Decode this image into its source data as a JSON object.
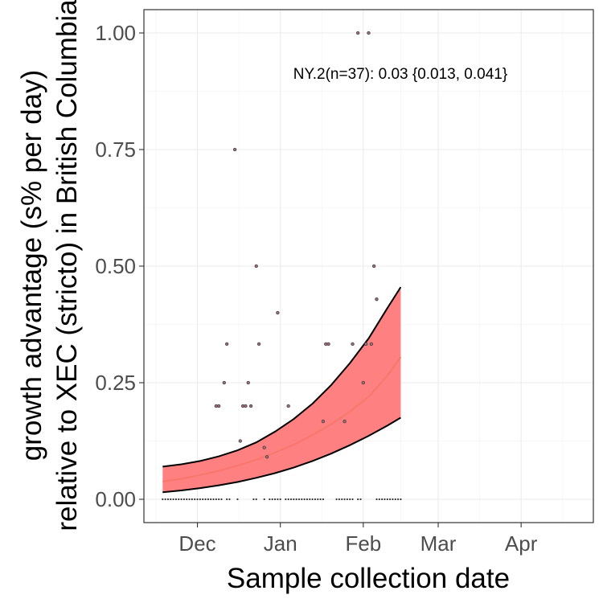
{
  "chart_data": {
    "type": "scatter",
    "title": "",
    "xlabel": "Sample collection date",
    "ylabel_line1": "growth advantage (s% per day)",
    "ylabel_line2": "relative to XEC (stricto) in British Columbia",
    "xlim": [
      "2024-11-11",
      "2025-04-28"
    ],
    "ylim": [
      -0.05,
      1.05
    ],
    "grid": true,
    "x_ticks": [
      {
        "date": "2024-12-01",
        "label": "Dec"
      },
      {
        "date": "2025-01-01",
        "label": "Jan"
      },
      {
        "date": "2025-02-01",
        "label": "Feb"
      },
      {
        "date": "2025-03-01",
        "label": "Mar"
      },
      {
        "date": "2025-04-01",
        "label": "Apr"
      }
    ],
    "y_ticks": [
      {
        "value": 0.0,
        "label": "0.00"
      },
      {
        "value": 0.25,
        "label": "0.25"
      },
      {
        "value": 0.5,
        "label": "0.50"
      },
      {
        "value": 0.75,
        "label": "0.75"
      },
      {
        "value": 1.0,
        "label": "1.00"
      }
    ],
    "annotation": "NY.2(n=37): 0.03 {0.013, 0.041}",
    "colors": {
      "fit": "#f8766d",
      "ribbon": "#ff8080",
      "bound": "#000000",
      "points": "#4d4d4d"
    },
    "points": [
      {
        "x": "2024-12-08",
        "y": 0.2
      },
      {
        "x": "2024-12-09",
        "y": 0.2
      },
      {
        "x": "2024-12-11",
        "y": 0.25
      },
      {
        "x": "2024-12-12",
        "y": 0.333
      },
      {
        "x": "2024-12-15",
        "y": 0.75
      },
      {
        "x": "2024-12-17",
        "y": 0.125
      },
      {
        "x": "2024-12-18",
        "y": 0.2
      },
      {
        "x": "2024-12-19",
        "y": 0.2
      },
      {
        "x": "2024-12-20",
        "y": 0.25
      },
      {
        "x": "2024-12-21",
        "y": 0.2
      },
      {
        "x": "2024-12-23",
        "y": 0.5
      },
      {
        "x": "2024-12-24",
        "y": 0.333
      },
      {
        "x": "2024-12-26",
        "y": 0.111
      },
      {
        "x": "2024-12-27",
        "y": 0.091
      },
      {
        "x": "2024-12-31",
        "y": 0.4
      },
      {
        "x": "2025-01-04",
        "y": 0.2
      },
      {
        "x": "2025-01-17",
        "y": 0.167
      },
      {
        "x": "2025-01-18",
        "y": 0.333
      },
      {
        "x": "2025-01-19",
        "y": 0.333
      },
      {
        "x": "2025-01-25",
        "y": 0.167
      },
      {
        "x": "2025-01-28",
        "y": 0.333
      },
      {
        "x": "2025-01-30",
        "y": 1.0
      },
      {
        "x": "2025-02-01",
        "y": 0.25
      },
      {
        "x": "2025-02-02",
        "y": 0.333
      },
      {
        "x": "2025-02-03",
        "y": 1.0
      },
      {
        "x": "2025-02-04",
        "y": 0.333
      },
      {
        "x": "2025-02-05",
        "y": 0.5
      },
      {
        "x": "2025-02-06",
        "y": 0.429
      }
    ],
    "zero_points": [
      "2024-11-18",
      "2024-11-19",
      "2024-11-20",
      "2024-11-21",
      "2024-11-22",
      "2024-11-23",
      "2024-11-24",
      "2024-11-25",
      "2024-11-26",
      "2024-11-27",
      "2024-11-28",
      "2024-11-29",
      "2024-11-30",
      "2024-12-01",
      "2024-12-02",
      "2024-12-03",
      "2024-12-04",
      "2024-12-05",
      "2024-12-06",
      "2024-12-07",
      "2024-12-08",
      "2024-12-09",
      "2024-12-10",
      "2024-12-12",
      "2024-12-13",
      "2024-12-16",
      "2024-12-22",
      "2024-12-23",
      "2024-12-26",
      "2024-12-28",
      "2024-12-29",
      "2024-12-30",
      "2024-12-31",
      "2025-01-01",
      "2025-01-03",
      "2025-01-04",
      "2025-01-05",
      "2025-01-06",
      "2025-01-07",
      "2025-01-08",
      "2025-01-09",
      "2025-01-10",
      "2025-01-11",
      "2025-01-12",
      "2025-01-13",
      "2025-01-14",
      "2025-01-15",
      "2025-01-16",
      "2025-01-17",
      "2025-01-22",
      "2025-01-23",
      "2025-01-24",
      "2025-01-25",
      "2025-01-26",
      "2025-01-27",
      "2025-01-28",
      "2025-01-30",
      "2025-01-31",
      "2025-02-06",
      "2025-02-07",
      "2025-02-08",
      "2025-02-09",
      "2025-02-10",
      "2025-02-11",
      "2025-02-12",
      "2025-02-13",
      "2025-02-14",
      "2025-02-15"
    ],
    "fit": {
      "x": [
        "2024-11-18",
        "2024-11-25",
        "2024-12-02",
        "2024-12-09",
        "2024-12-16",
        "2024-12-23",
        "2024-12-30",
        "2025-01-06",
        "2025-01-13",
        "2025-01-20",
        "2025-01-27",
        "2025-02-03",
        "2025-02-10",
        "2025-02-15"
      ],
      "mid": [
        0.038,
        0.044,
        0.052,
        0.061,
        0.072,
        0.085,
        0.1,
        0.117,
        0.138,
        0.161,
        0.188,
        0.22,
        0.265,
        0.305
      ],
      "lower": [
        0.015,
        0.019,
        0.024,
        0.03,
        0.037,
        0.046,
        0.056,
        0.068,
        0.082,
        0.098,
        0.116,
        0.136,
        0.158,
        0.175
      ],
      "upper": [
        0.07,
        0.075,
        0.082,
        0.092,
        0.105,
        0.122,
        0.145,
        0.172,
        0.205,
        0.245,
        0.292,
        0.345,
        0.41,
        0.455
      ]
    }
  }
}
